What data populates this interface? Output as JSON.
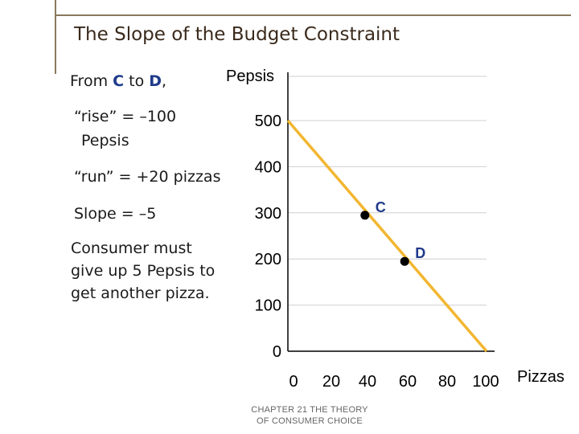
{
  "slide": {
    "title": "The Slope of the Budget Constraint",
    "caption_line1": "CHAPTER 21   THE THEORY",
    "caption_line2": "OF CONSUMER CHOICE"
  },
  "notes": {
    "from_prefix": "From ",
    "from_point_c": "C",
    "from_to": " to ",
    "from_point_d": "D",
    "from_suffix": ",",
    "rise_line1": "“rise” = –100",
    "rise_line2": "Pepsis",
    "run": "“run” = +20 pizzas",
    "slope": "Slope = –5",
    "consumer_line1": "Consumer must",
    "consumer_line2": "give up 5 Pepsis to",
    "consumer_line3": "get another pizza."
  },
  "chart_data": {
    "type": "line",
    "title": "",
    "xlabel": "Pizzas",
    "ylabel": "Pepsis",
    "xlim": [
      0,
      100
    ],
    "ylim": [
      0,
      500
    ],
    "x_ticks": [
      0,
      20,
      40,
      60,
      80,
      100
    ],
    "y_ticks": [
      0,
      100,
      200,
      300,
      400,
      500
    ],
    "grid": true,
    "series": [
      {
        "x": [
          0,
          100
        ],
        "y": [
          500,
          0
        ],
        "color": "#f2b630"
      }
    ],
    "points": [
      {
        "label": "C",
        "x": 40,
        "y": 300
      },
      {
        "label": "D",
        "x": 60,
        "y": 200
      }
    ],
    "point_color": "#000000",
    "point_label_color": "#1f3a8a"
  }
}
